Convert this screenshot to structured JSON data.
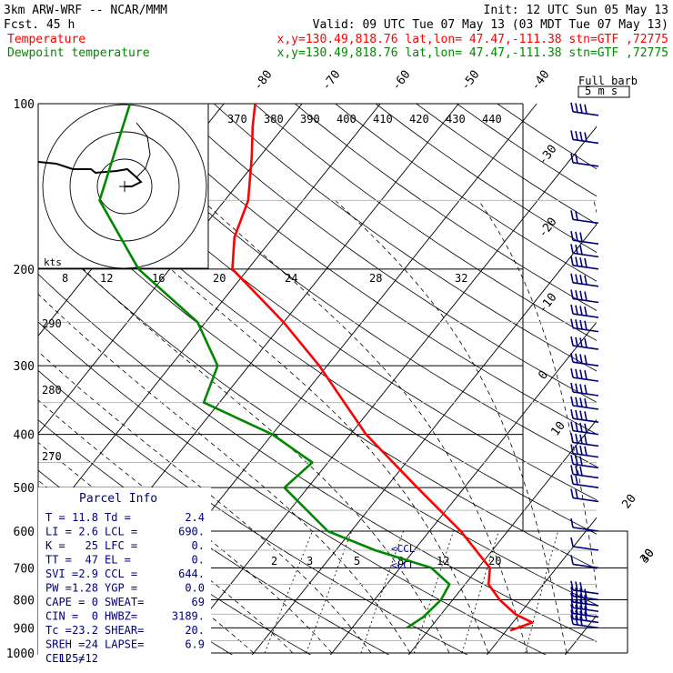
{
  "header": {
    "title": "3km ARW-WRF -- NCAR/MMM",
    "fcst": "Fcst.    45 h",
    "init": "Init: 12 UTC Sun 05 May 13",
    "valid": "Valid: 09 UTC Tue 07 May 13 (03 MDT Tue 07 May 13)",
    "line1_name": "Temperature",
    "line1_loc": "x,y=130.49,818.76   lat,lon= 47.47,-111.38   stn=GTF ,72775",
    "line2_name": "Dewpoint temperature",
    "line2_loc": "x,y=130.49,818.76   lat,lon= 47.47,-111.38   stn=GTF ,72775"
  },
  "colors": {
    "temperature": "#ff0000",
    "dewpoint": "#008800",
    "wind": "#00007a",
    "isotherm": "#000000",
    "theta_line": "#000000",
    "moist_adiabat": "#000000",
    "mixing_ratio": "#000000",
    "grid_light": "#b8b8b8"
  },
  "chart_data": {
    "type": "line",
    "title": "",
    "xlabel": "",
    "ylabel": "",
    "y_scale": "log",
    "pressure_levels": [
      100,
      200,
      300,
      400,
      500,
      600,
      700,
      800,
      900,
      1000
    ],
    "isotherm_labels_top": [
      -80,
      -70,
      -60,
      -50,
      -40
    ],
    "isotherm_labels_right": [
      -30,
      -20,
      -10,
      0,
      10,
      20,
      30,
      40
    ],
    "theta_labels": [
      370,
      380,
      390,
      400,
      410,
      420,
      430,
      440
    ],
    "theta_labels_left": [
      290,
      280,
      270
    ],
    "mixing_ratio_labels_upper": [
      8,
      12,
      16,
      20,
      24,
      28,
      32
    ],
    "mixing_ratio_labels_lower": [
      2,
      3,
      5,
      8,
      12,
      20
    ],
    "series": [
      {
        "name": "Temperature",
        "points": [
          [
            910,
            20.5
          ],
          [
            880,
            22.5
          ],
          [
            850,
            19.5
          ],
          [
            800,
            16
          ],
          [
            750,
            13
          ],
          [
            700,
            11.5
          ],
          [
            600,
            4
          ],
          [
            500,
            -6
          ],
          [
            400,
            -18
          ],
          [
            300,
            -31
          ],
          [
            250,
            -40
          ],
          [
            200,
            -52
          ],
          [
            175,
            -55
          ],
          [
            150,
            -57
          ],
          [
            125,
            -61
          ],
          [
            110,
            -64
          ],
          [
            100,
            -66
          ]
        ]
      },
      {
        "name": "Dewpoint temperature",
        "points": [
          [
            900,
            7
          ],
          [
            860,
            8
          ],
          [
            800,
            8.5
          ],
          [
            750,
            8
          ],
          [
            700,
            4
          ],
          [
            650,
            -5
          ],
          [
            600,
            -13
          ],
          [
            500,
            -23
          ],
          [
            450,
            -22
          ],
          [
            400,
            -30
          ],
          [
            350,
            -42
          ],
          [
            300,
            -44
          ],
          [
            250,
            -51
          ],
          [
            200,
            -64
          ],
          [
            150,
            -76
          ],
          [
            100,
            -82
          ]
        ]
      }
    ],
    "wind_barbs_right": [
      {
        "p": 105,
        "spd": 20
      },
      {
        "p": 118,
        "spd": 20
      },
      {
        "p": 130,
        "spd": 10
      },
      {
        "p": 165,
        "spd": 10
      },
      {
        "p": 180,
        "spd": 15
      },
      {
        "p": 190,
        "spd": 15
      },
      {
        "p": 200,
        "spd": 20
      },
      {
        "p": 215,
        "spd": 20
      },
      {
        "p": 230,
        "spd": 20
      },
      {
        "p": 245,
        "spd": 20
      },
      {
        "p": 260,
        "spd": 20
      },
      {
        "p": 280,
        "spd": 20
      },
      {
        "p": 300,
        "spd": 20
      },
      {
        "p": 320,
        "spd": 20
      },
      {
        "p": 340,
        "spd": 20
      },
      {
        "p": 360,
        "spd": 20
      },
      {
        "p": 380,
        "spd": 20
      },
      {
        "p": 400,
        "spd": 20
      },
      {
        "p": 420,
        "spd": 20
      },
      {
        "p": 440,
        "spd": 20
      },
      {
        "p": 460,
        "spd": 15
      },
      {
        "p": 480,
        "spd": 15
      },
      {
        "p": 500,
        "spd": 10
      },
      {
        "p": 530,
        "spd": 10
      },
      {
        "p": 600,
        "spd": 5
      },
      {
        "p": 650,
        "spd": 5
      },
      {
        "p": 700,
        "spd": 5
      },
      {
        "p": 780,
        "spd": 15
      },
      {
        "p": 800,
        "spd": 20
      },
      {
        "p": 820,
        "spd": 20
      },
      {
        "p": 840,
        "spd": 20
      },
      {
        "p": 860,
        "spd": 20
      },
      {
        "p": 880,
        "spd": 20
      },
      {
        "p": 900,
        "spd": 15
      }
    ],
    "annotations": [
      "CCL",
      "LCL"
    ],
    "full_barb_label": "Full barb",
    "full_barb_value": "5 m s",
    "hodograph_units": "kts"
  },
  "parcel": {
    "title": "Parcel Info",
    "rows": [
      [
        "T  =",
        "11.8",
        "Td =",
        "2.4"
      ],
      [
        "LI =",
        "2.6",
        "LCL =",
        "690."
      ],
      [
        "K  =",
        "25",
        "LFC =",
        "0."
      ],
      [
        "TT =",
        "47",
        "EL  =",
        "0."
      ],
      [
        "SVI =",
        "2.9",
        "CCL =",
        "644."
      ],
      [
        "PW  =",
        "1.28",
        "YGP =",
        "0.0"
      ],
      [
        "CAPE =",
        "0",
        "SWEAT=",
        "69"
      ],
      [
        "CIN  =",
        "0",
        "HWBZ=",
        "3189."
      ],
      [
        "Tc  =",
        "23.2",
        "SHEAR=",
        "20."
      ],
      [
        "SREH =",
        "24",
        "LAPSE=",
        "6.9"
      ],
      [
        "CELL =",
        "125/12",
        "",
        ""
      ]
    ]
  }
}
